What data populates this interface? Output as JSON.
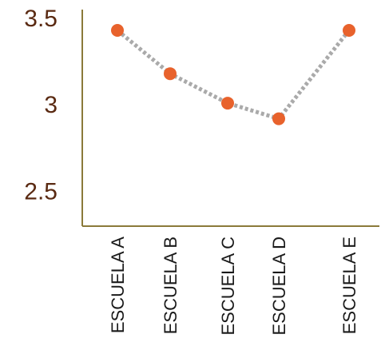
{
  "chart_data": {
    "type": "line",
    "categories": [
      "ESCUELA A",
      "ESCUELA B",
      "ESCUELA C",
      "ESCUELA D",
      "ESCUELA E"
    ],
    "series": [
      {
        "values": [
          3.43,
          3.18,
          3.01,
          2.92,
          3.43
        ]
      }
    ],
    "yticks": [
      "2.5",
      "3",
      "3.5"
    ],
    "ylim": [
      2.3,
      3.55
    ],
    "grid": false,
    "legend": "none",
    "line_style": "dotted",
    "colors": {
      "marker": "#e8622c",
      "line": "#aaaaaa",
      "axis": "#8b7a3a",
      "ytick_text": "#5a2a12",
      "xtick_text": "#1a1a1a"
    }
  }
}
